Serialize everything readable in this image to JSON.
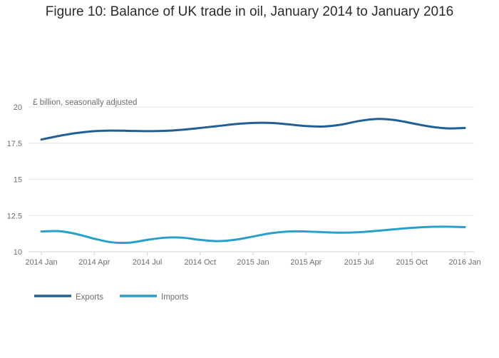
{
  "chart_data": {
    "type": "line",
    "title": "Figure 10: Balance of UK trade in oil, January 2014 to January 2016",
    "subtitle": "",
    "xlabel": "",
    "ylabel": "£ billion, seasonally adjusted",
    "ylim": [
      10,
      20
    ],
    "yticks": [
      10,
      12.5,
      15,
      17.5,
      20
    ],
    "ytick_labels": [
      "10",
      "12.5",
      "15",
      "17.5",
      "20"
    ],
    "xticks": [
      "2014 Jan",
      "2014 Apr",
      "2014 Jul",
      "2014 Oct",
      "2015 Jan",
      "2015 Apr",
      "2015 Jul",
      "2015 Oct",
      "2016 Jan"
    ],
    "grid": true,
    "legend_position": "bottom-left",
    "x": [
      "2014 Jan",
      "2014 Feb",
      "2014 Mar",
      "2014 Apr",
      "2014 May",
      "2014 Jun",
      "2014 Jul",
      "2014 Aug",
      "2014 Sep",
      "2014 Oct",
      "2014 Nov",
      "2014 Dec",
      "2015 Jan",
      "2015 Feb",
      "2015 Mar",
      "2015 Apr",
      "2015 May",
      "2015 Jun",
      "2015 Jul",
      "2015 Aug",
      "2015 Sep",
      "2015 Oct",
      "2015 Nov",
      "2015 Dec",
      "2016 Jan"
    ],
    "series": [
      {
        "name": "Exports",
        "color": "#206095",
        "values": [
          17.75,
          18.0,
          18.2,
          18.33,
          18.37,
          18.35,
          18.33,
          18.35,
          18.43,
          18.55,
          18.68,
          18.82,
          18.9,
          18.9,
          18.8,
          18.68,
          18.65,
          18.78,
          19.03,
          19.17,
          19.1,
          18.88,
          18.65,
          18.52,
          18.55
        ]
      },
      {
        "name": "Imports",
        "color": "#27a0cc",
        "values": [
          11.4,
          11.42,
          11.22,
          10.9,
          10.65,
          10.63,
          10.82,
          10.97,
          10.97,
          10.82,
          10.73,
          10.83,
          11.05,
          11.28,
          11.4,
          11.4,
          11.35,
          11.32,
          11.35,
          11.44,
          11.55,
          11.65,
          11.72,
          11.73,
          11.7
        ]
      }
    ]
  }
}
